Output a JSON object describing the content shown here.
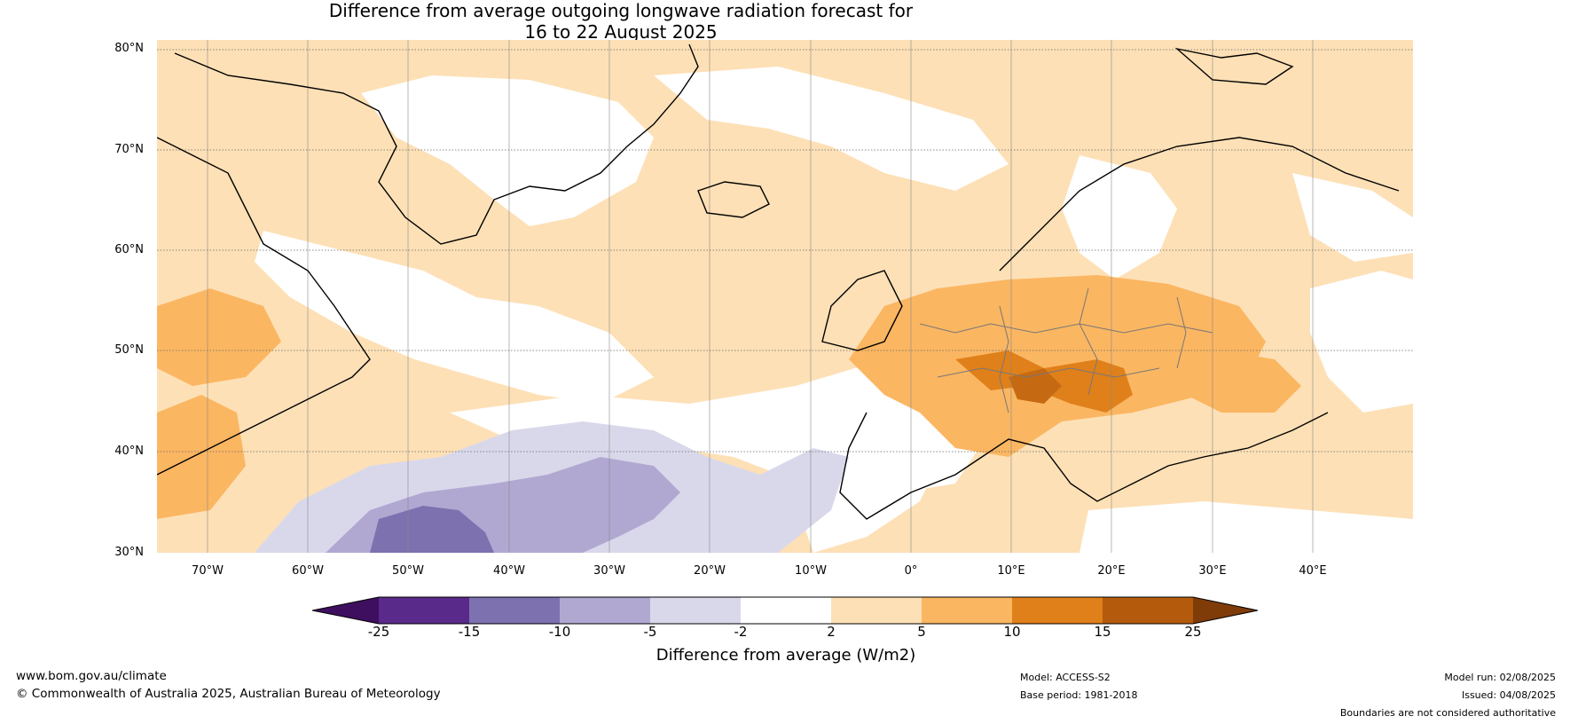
{
  "title_line1": "Difference from average outgoing longwave radiation forecast for",
  "title_line2": "16 to 22 August 2025",
  "lat_labels": [
    "80°N",
    "70°N",
    "60°N",
    "50°N",
    "40°N",
    "30°N"
  ],
  "lon_labels": [
    "70°W",
    "60°W",
    "50°W",
    "40°W",
    "30°W",
    "20°W",
    "10°W",
    "0°",
    "10°E",
    "20°E",
    "30°E",
    "40°E"
  ],
  "colorbar": {
    "title": "Difference from average (W/m2)",
    "ticks": [
      "-25",
      "-15",
      "-10",
      "-5",
      "-2",
      "2",
      "5",
      "10",
      "15",
      "25"
    ],
    "colors": [
      "#3f0f5f",
      "#5a2a8a",
      "#7e71b0",
      "#b1a8d2",
      "#d9d8eb",
      "#ffffff",
      "#fde0b6",
      "#fbb662",
      "#e0801a",
      "#b35a0d",
      "#7f3b08"
    ]
  },
  "map_colors": {
    "pos_light": "#fde0b6",
    "pos_mid": "#fbb662",
    "pos_strong": "#e0801a",
    "pos_max": "#c56a12",
    "neg_light": "#d9d8eb",
    "neg_mid": "#b1a8d2",
    "neg_strong": "#7e71b0"
  },
  "footer": {
    "site": "www.bom.gov.au/climate",
    "copyright": "© Commonwealth of Australia 2025, Australian Bureau of Meteorology",
    "model": "Model: ACCESS-S2",
    "base_period": "Base period: 1981-2018",
    "model_run": "Model run: 02/08/2025",
    "issued": "Issued: 04/08/2025",
    "disclaimer": "Boundaries are not considered authoritative"
  }
}
